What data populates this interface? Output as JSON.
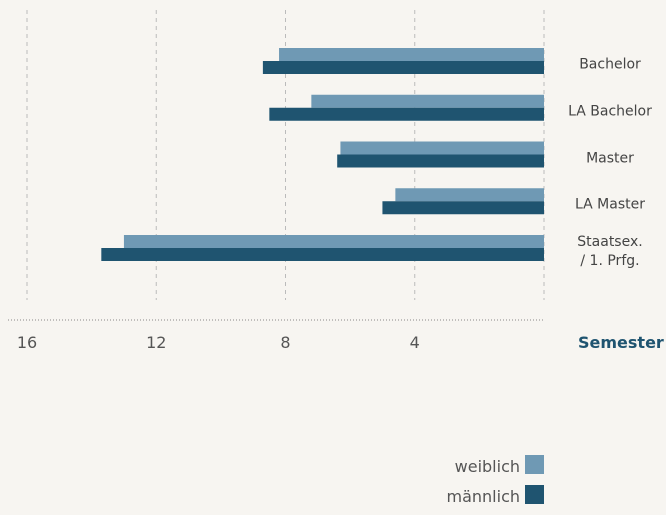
{
  "chart_data": {
    "type": "bar",
    "orientation": "horizontal",
    "x_reversed": true,
    "xlabel": "Semester",
    "categories": [
      "Bachelor",
      "LA Bachelor",
      "Master",
      "LA Master",
      "Staatsex.\n/ 1. Prfg."
    ],
    "series": [
      {
        "name": "weiblich",
        "color": "#6f99b4",
        "values": [
          8.2,
          7.2,
          6.3,
          4.6,
          13.0
        ]
      },
      {
        "name": "männlich",
        "color": "#1f5470",
        "values": [
          8.7,
          8.5,
          6.4,
          5.0,
          13.7
        ]
      }
    ],
    "xlim": [
      0,
      16
    ],
    "xticks": [
      16,
      12,
      8,
      4
    ],
    "grid": true,
    "legend": "bottom-right"
  }
}
